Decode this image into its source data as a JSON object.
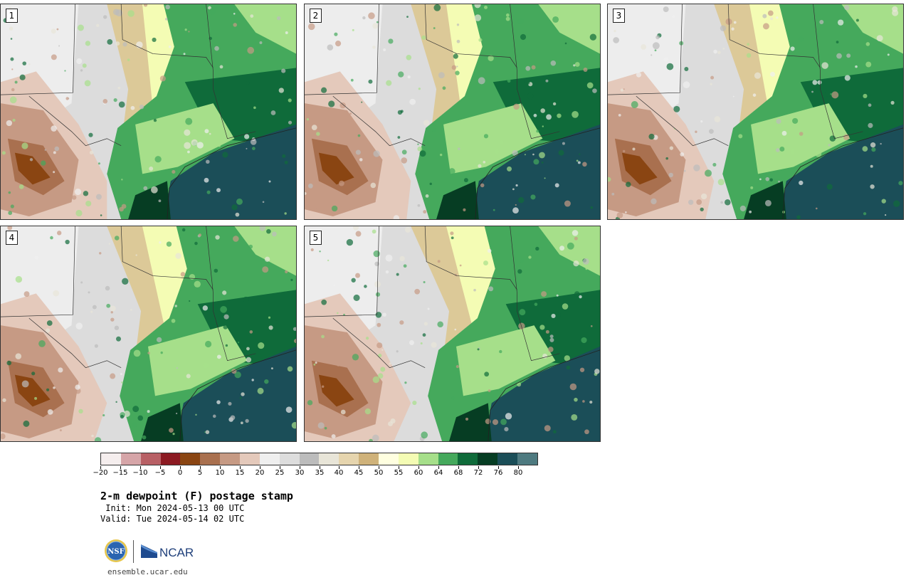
{
  "panels": [
    {
      "label": "1",
      "variant": 0
    },
    {
      "label": "2",
      "variant": 1
    },
    {
      "label": "3",
      "variant": 2
    },
    {
      "label": "4",
      "variant": 3
    },
    {
      "label": "5",
      "variant": 4
    }
  ],
  "colorbar": {
    "colors": [
      "#f5eeee",
      "#d6a5a8",
      "#b86065",
      "#8c1a22",
      "#8a4512",
      "#a9704f",
      "#c69a84",
      "#e4c9bb",
      "#efefef",
      "#dddddd",
      "#bcbcbc",
      "#e8e5d8",
      "#e6d5ae",
      "#cfb27a",
      "#ffffe0",
      "#f4fcb4",
      "#a6df8a",
      "#45a95c",
      "#0f6b3a",
      "#063d23",
      "#1b4e58",
      "#4e7a80"
    ],
    "tick_labels": [
      "−20",
      "−15",
      "−10",
      "−5",
      "0",
      "5",
      "10",
      "15",
      "20",
      "25",
      "30",
      "35",
      "40",
      "45",
      "50",
      "55",
      "60",
      "64",
      "68",
      "72",
      "76",
      "80"
    ]
  },
  "title": "2-m dewpoint (F) postage stamp",
  "init": " Init: Mon 2024-05-13 00 UTC",
  "valid": "Valid: Tue 2024-05-14 02 UTC",
  "logos": {
    "nsf": "NSF",
    "ncar": "NCAR"
  },
  "site": "ensemble.ucar.edu"
}
